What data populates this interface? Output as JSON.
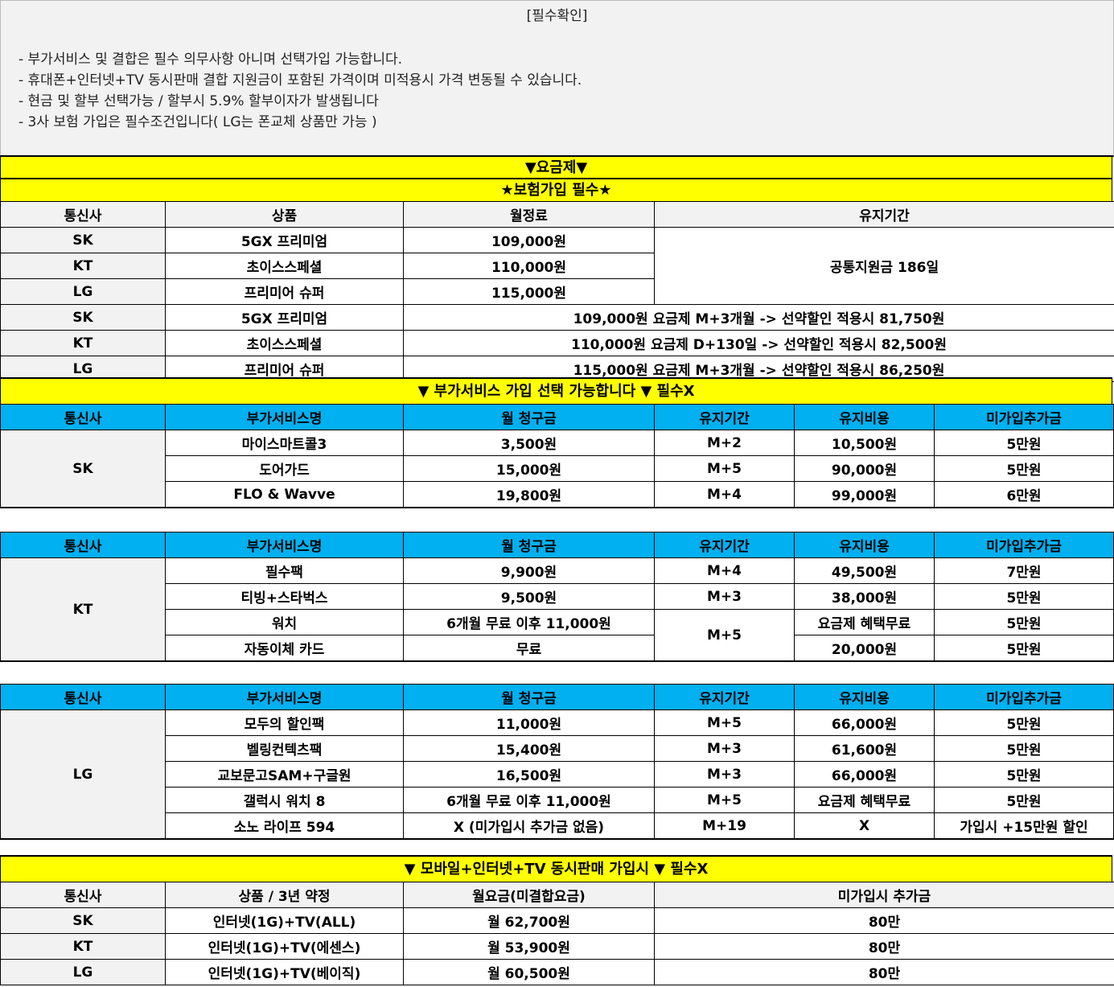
{
  "notice": {
    "title": "[필수확인]",
    "lines": [
      "- 부가서비스 및 결합은 필수 의무사항 아니며 선택가입 가능합니다.",
      "- 휴대폰+인터넷+TV 동시판매 결합 지원금이 포함된 가격이며 미적용시 가격 변동될 수 있습니다.",
      "- 현금 및 할부 선택가능 / 할부시 5.9% 할부이자가 발생됩니다",
      "- 3사 보험 가입은 필수조건입니다( LG는 폰교체 상품만 가능 )"
    ]
  },
  "banners": {
    "plan": "▼요금제▼",
    "insurance": "★보험가입 필수★",
    "addon": "▼ 부가서비스 가입 선택 가능합니다 ▼ 필수X",
    "bundle": "▼ 모바일+인터넷+TV 동시판매 가입시 ▼ 필수X"
  },
  "colors": {
    "banner": "#ffff00",
    "header_blue": "#00b0f0",
    "header_gray": "#f2f2f2"
  },
  "tables": {
    "plans": {
      "headers": [
        "통신사",
        "상품",
        "월정료",
        "유지기간"
      ],
      "rows": [
        [
          {
            "t": "SK",
            "c": 1
          },
          "5GX 프리미엄",
          "109,000원",
          {
            "t": "공통지원금 186일",
            "rs": 3
          }
        ],
        [
          {
            "t": "KT",
            "c": 1
          },
          "초이스스페셜",
          "110,000원"
        ],
        [
          {
            "t": "LG",
            "c": 1
          },
          "프리미어 슈퍼",
          "115,000원"
        ],
        [
          {
            "t": "SK",
            "c": 1
          },
          "5GX 프리미엄",
          {
            "t": "109,000원 요금제 M+3개월 -> 선약할인 적용시 81,750원",
            "cs": 2
          }
        ],
        [
          {
            "t": "KT",
            "c": 1
          },
          "초이스스페셜",
          {
            "t": "110,000원 요금제 D+130일 -> 선약할인 적용시 82,500원",
            "cs": 2
          }
        ],
        [
          {
            "t": "LG",
            "c": 1
          },
          "프리미어 슈퍼",
          {
            "t": "115,000원 요금제 M+3개월 -> 선약할인 적용시 86,250원",
            "cs": 2
          }
        ]
      ]
    },
    "addon_sk": {
      "headers": [
        "통신사",
        "부가서비스명",
        "월 청구금",
        "유지기간",
        "유지비용",
        "미가입추가금"
      ],
      "rows": [
        [
          {
            "t": "SK",
            "rs": 3,
            "c": 1
          },
          "마이스마트콜3",
          "3,500원",
          "M+2",
          "10,500원",
          "5만원"
        ],
        [
          "도어가드",
          "15,000원",
          "M+5",
          "90,000원",
          "5만원"
        ],
        [
          "FLO & Wavve",
          "19,800원",
          "M+4",
          "99,000원",
          "6만원"
        ]
      ]
    },
    "addon_kt": {
      "headers": [
        "통신사",
        "부가서비스명",
        "월 청구금",
        "유지기간",
        "유지비용",
        "미가입추가금"
      ],
      "rows": [
        [
          {
            "t": "KT",
            "rs": 4,
            "c": 1
          },
          "필수팩",
          "9,900원",
          "M+4",
          "49,500원",
          "7만원"
        ],
        [
          "티빙+스타벅스",
          "9,500원",
          "M+3",
          "38,000원",
          "5만원"
        ],
        [
          "워치",
          "6개월 무료 이후 11,000원",
          {
            "t": "M+5",
            "rs": 2
          },
          "요금제 혜택무료",
          "5만원"
        ],
        [
          "자동이체 카드",
          "무료",
          "20,000원",
          "5만원"
        ]
      ]
    },
    "addon_lg": {
      "headers": [
        "통신사",
        "부가서비스명",
        "월 청구금",
        "유지기간",
        "유지비용",
        "미가입추가금"
      ],
      "rows": [
        [
          {
            "t": "LG",
            "rs": 5,
            "c": 1
          },
          "모두의 할인팩",
          "11,000원",
          "M+5",
          "66,000원",
          "5만원"
        ],
        [
          "벨링컨텍츠팩",
          "15,400원",
          "M+3",
          "61,600원",
          "5만원"
        ],
        [
          "교보문고SAM+구글원",
          "16,500원",
          "M+3",
          "66,000원",
          "5만원"
        ],
        [
          "갤럭시 워치 8",
          "6개월 무료 이후 11,000원",
          "M+5",
          "요금제 혜택무료",
          "5만원"
        ],
        [
          "소노 라이프 594",
          "X (미가입시 추가금 없음)",
          "M+19",
          "X",
          "가입시 +15만원 할인"
        ]
      ]
    },
    "bundle": {
      "headers": [
        "통신사",
        "상품 / 3년 약정",
        "월요금(미결합요금)",
        "미가입시 추가금"
      ],
      "rows": [
        [
          {
            "t": "SK",
            "c": 1
          },
          "인터넷(1G)+TV(ALL)",
          "월 62,700원",
          "80만"
        ],
        [
          {
            "t": "KT",
            "c": 1
          },
          "인터넷(1G)+TV(에센스)",
          "월 53,900원",
          "80만"
        ],
        [
          {
            "t": "LG",
            "c": 1
          },
          "인터넷(1G)+TV(베이직)",
          "월 60,500원",
          "80만"
        ]
      ]
    }
  }
}
